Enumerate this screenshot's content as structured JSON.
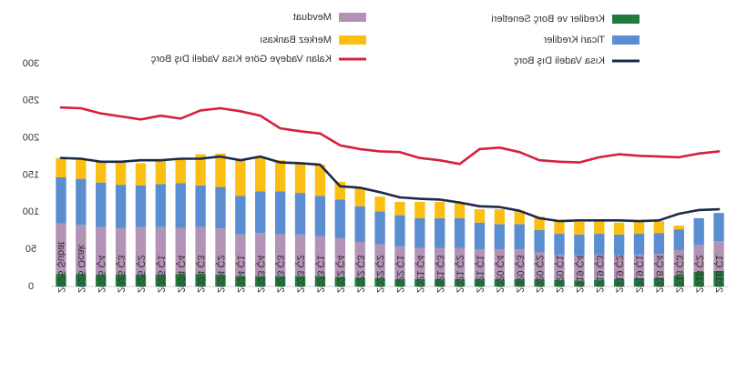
{
  "chart_data": {
    "type": "stacked-bar-line",
    "title": "",
    "orientation": "mirrored-horizontally",
    "categories": [
      "2026 Şubat",
      "2026 Ocak",
      "2025 Ç4",
      "2025 Ç3",
      "2025 Ç2",
      "2025 Ç1",
      "2024 Ç4",
      "2024 Ç3",
      "2024 Ç2",
      "2024 Ç1",
      "2023 Ç4",
      "2023 Ç3",
      "2023 Ç2",
      "2023 Ç1",
      "2022 Ç4",
      "2022 Ç3",
      "2022 Ç2",
      "2022 Ç1",
      "2021 Ç4",
      "2021 Ç3",
      "2021 Ç2",
      "2021 Ç1",
      "2020 Ç4",
      "2020 Ç3",
      "2020 Ç2",
      "2020 Ç1",
      "2019 Ç4",
      "2019 Ç3",
      "2019 Ç2",
      "2019 Ç1",
      "2018 Ç4",
      "2018 Ç3",
      "2018 Ç2",
      "2018 Ç1"
    ],
    "ylim": [
      0,
      300
    ],
    "yticks": [
      "0",
      "50",
      "100",
      "150",
      "200",
      "250",
      "300"
    ],
    "series": [
      {
        "name": "Krediler ve Borç Senetleri",
        "kind": "bar",
        "color": "#1e7d3c",
        "values": [
          17,
          17,
          16,
          16,
          16,
          16,
          17,
          17,
          16,
          14,
          14,
          14,
          14,
          14,
          13,
          12,
          11,
          10,
          10,
          10,
          10,
          10,
          10,
          10,
          10,
          9,
          8,
          9,
          10,
          11,
          12,
          15,
          20,
          21
        ]
      },
      {
        "name": "Mevduat",
        "kind": "bar",
        "color": "#b393b5",
        "values": [
          68,
          66,
          64,
          63,
          64,
          64,
          62,
          63,
          62,
          56,
          58,
          56,
          56,
          54,
          52,
          48,
          46,
          44,
          42,
          42,
          42,
          40,
          40,
          40,
          36,
          34,
          34,
          34,
          32,
          32,
          32,
          34,
          36,
          40
        ]
      },
      {
        "name": "Ticari Krediler",
        "kind": "bar",
        "color": "#5b8ed1",
        "values": [
          62,
          62,
          60,
          58,
          56,
          58,
          60,
          56,
          56,
          52,
          56,
          58,
          56,
          54,
          52,
          48,
          44,
          42,
          40,
          40,
          40,
          36,
          34,
          34,
          30,
          28,
          28,
          28,
          28,
          28,
          28,
          28,
          36,
          38
        ]
      },
      {
        "name": "Merkez Bankası",
        "kind": "bar",
        "color": "#fbbf14",
        "values": [
          26,
          27,
          28,
          31,
          30,
          32,
          33,
          42,
          45,
          48,
          47,
          42,
          40,
          42,
          24,
          24,
          20,
          18,
          22,
          22,
          20,
          18,
          20,
          18,
          18,
          17,
          17,
          17,
          16,
          16,
          16,
          5,
          0,
          0
        ]
      },
      {
        "name": "Kalan Vadeye Göre Kısa Vadeli Dış Borç",
        "kind": "line",
        "color": "#d4213d",
        "values": [
          241,
          240,
          233,
          229,
          225,
          230,
          226,
          237,
          240,
          236,
          230,
          213,
          209,
          206,
          190,
          185,
          182,
          181,
          173,
          170,
          165,
          185,
          187,
          181,
          170,
          168,
          167,
          174,
          178,
          176,
          175,
          174,
          179,
          182
        ]
      },
      {
        "name": "Kısa Vadeli Dış Borç",
        "kind": "line",
        "color": "#1b2a4a",
        "values": [
          173,
          172,
          168,
          168,
          170,
          170,
          172,
          172,
          175,
          170,
          175,
          167,
          166,
          164,
          135,
          133,
          127,
          120,
          118,
          117,
          113,
          108,
          107,
          102,
          92,
          88,
          89,
          89,
          89,
          88,
          89,
          98,
          103,
          104
        ]
      }
    ]
  }
}
